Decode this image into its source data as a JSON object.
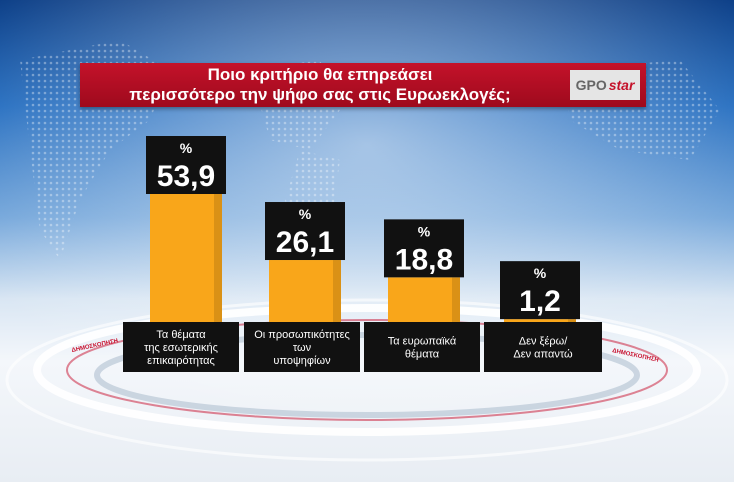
{
  "title_lines": [
    "Ποιο κριτήριο θα επηρεάσει",
    "περισσότερο την ψήφο σας στις Ευρωεκλογές;"
  ],
  "logo": {
    "left": "GPO",
    "right": "star"
  },
  "watermark": "ΔΗΜΟΣΚΟΠΗΣΗ",
  "colors": {
    "bar": "#f9a61a",
    "label_box": "#111111",
    "title_bg": "#b0101f"
  },
  "chart_data": {
    "type": "bar",
    "unit_symbol": "%",
    "categories": [
      [
        "Τα θέματα",
        "της εσωτερικής",
        "επικαιρότητας"
      ],
      [
        "Οι προσωπικότητες",
        "των",
        "υποψηφίων"
      ],
      [
        "Τα ευρωπαϊκά",
        "θέματα"
      ],
      [
        "Δεν ξέρω/",
        "Δεν απαντώ"
      ]
    ],
    "values": [
      53.9,
      26.1,
      18.8,
      1.2
    ],
    "value_labels": [
      "53,9",
      "26,1",
      "18,8",
      "1,2"
    ],
    "ylim": [
      0,
      53.9
    ],
    "grid": false,
    "legend": "none"
  }
}
